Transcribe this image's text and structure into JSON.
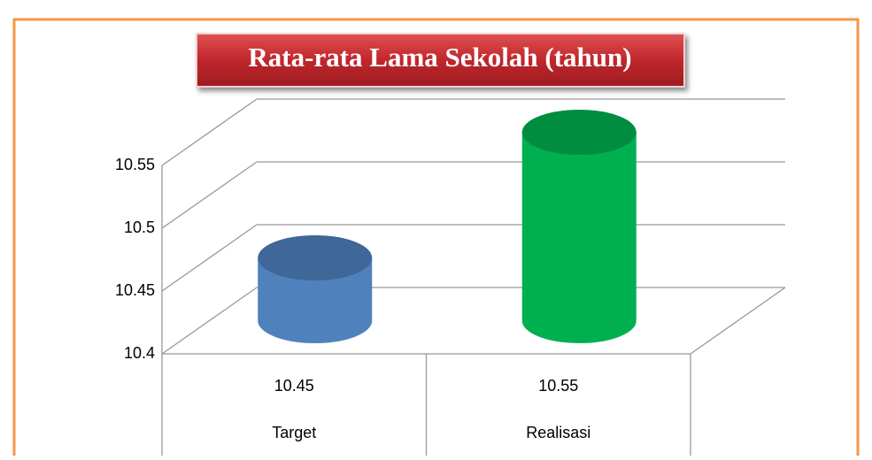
{
  "chart_data": {
    "type": "bar3d",
    "title": "Rata-rata Lama Sekolah (tahun)",
    "categories": [
      "Target",
      "Realisasi"
    ],
    "values": [
      10.45,
      10.55
    ],
    "colors": [
      "#4f81bd",
      "#00b050"
    ],
    "ylim": [
      10.4,
      10.55
    ],
    "yticks": [
      10.4,
      10.45,
      10.5,
      10.55
    ],
    "grid": true
  }
}
